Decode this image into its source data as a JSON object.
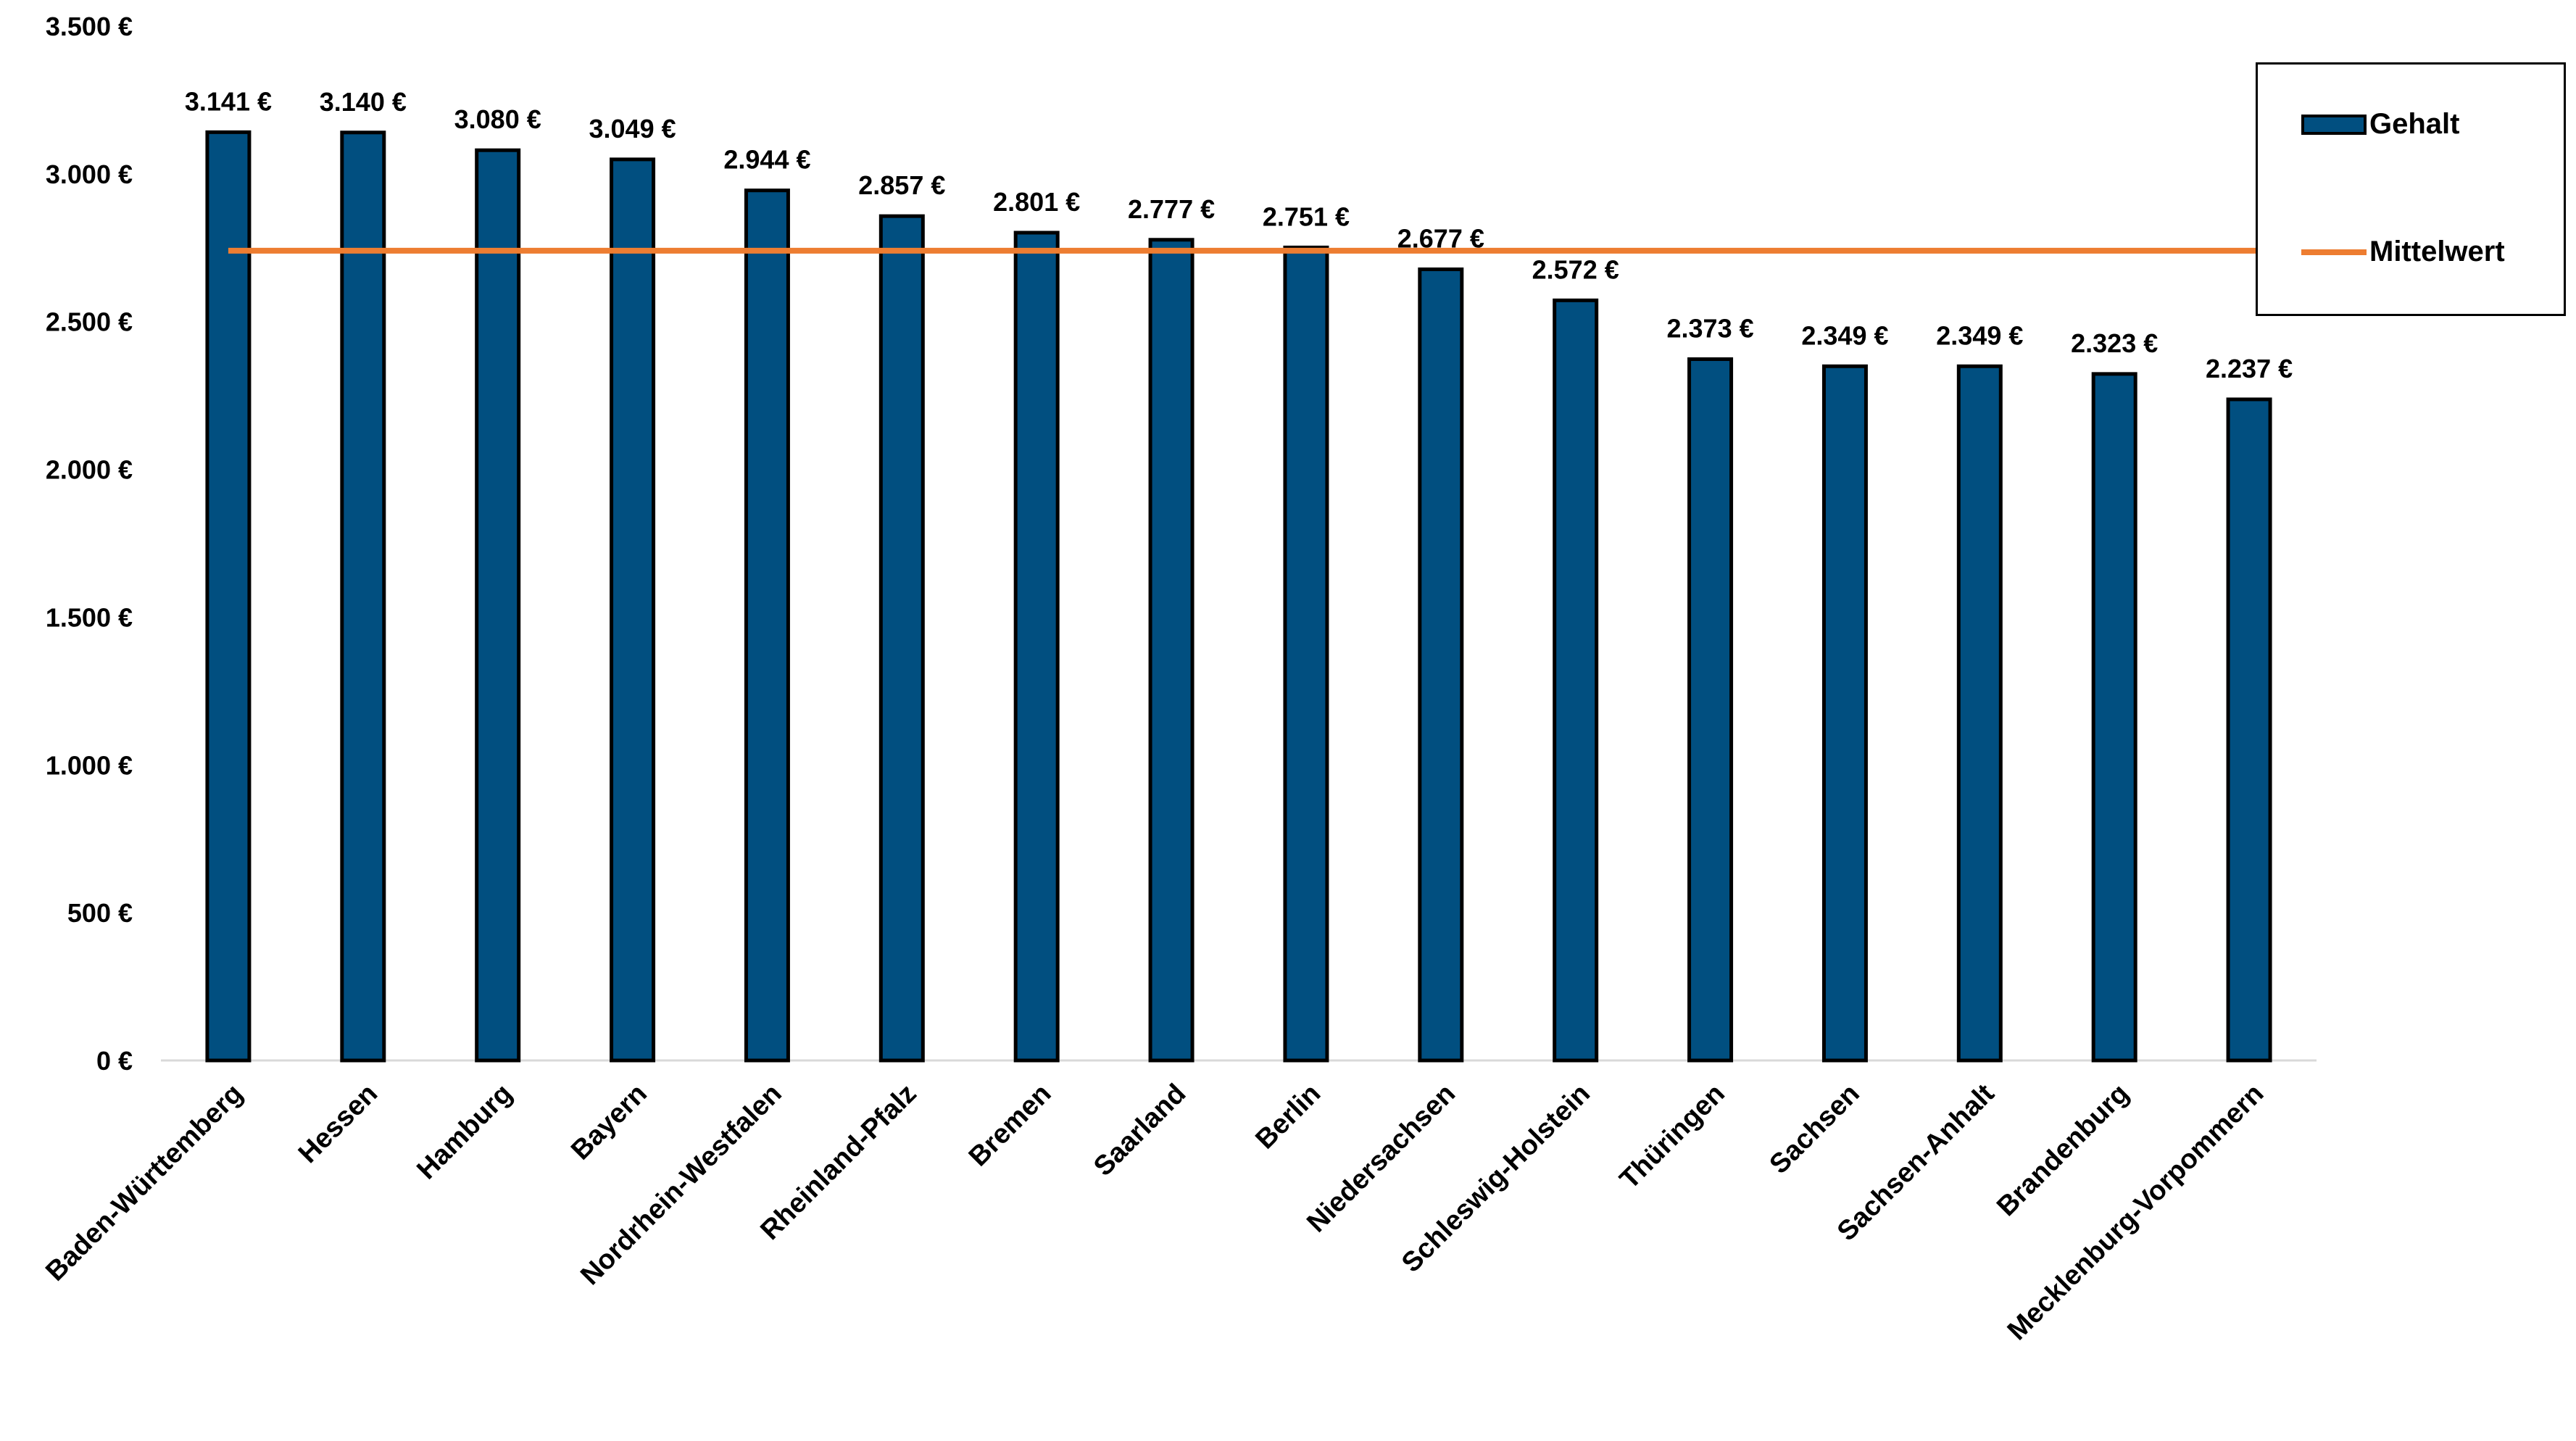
{
  "chart_data": {
    "type": "bar",
    "categories": [
      "Baden-Württemberg",
      "Hessen",
      "Hamburg",
      "Bayern",
      "Nordrhein-Westfalen",
      "Rheinland-Pfalz",
      "Bremen",
      "Saarland",
      "Berlin",
      "Niedersachsen",
      "Schleswig-Holstein",
      "Thüringen",
      "Sachsen",
      "Sachsen-Anhalt",
      "Brandenburg",
      "Mecklenburg-Vorpommern"
    ],
    "series": [
      {
        "name": "Gehalt",
        "values": [
          3141,
          3140,
          3080,
          3049,
          2944,
          2857,
          2801,
          2777,
          2751,
          2677,
          2572,
          2373,
          2349,
          2349,
          2323,
          2237
        ]
      }
    ],
    "data_labels": [
      "3.141 €",
      "3.140 €",
      "3.080 €",
      "3.049 €",
      "2.944 €",
      "2.857 €",
      "2.801 €",
      "2.777 €",
      "2.751 €",
      "2.677 €",
      "2.572 €",
      "2.373 €",
      "2.349 €",
      "2.349 €",
      "2.323 €",
      "2.237 €"
    ],
    "reference_line": {
      "name": "Mittelwert",
      "value": 2740
    },
    "y_ticks": [
      0,
      500,
      1000,
      1500,
      2000,
      2500,
      3000,
      3500
    ],
    "y_tick_labels": [
      "0 €",
      "500 €",
      "1.000 €",
      "1.500 €",
      "2.000 €",
      "2.500 €",
      "3.000 €",
      "3.500 €"
    ],
    "ylim": [
      0,
      3500
    ],
    "grid": false,
    "legend_position": "top-right",
    "title": "",
    "xlabel": "",
    "ylabel": "",
    "colors": {
      "bar": "#014f80",
      "bar_border": "#000000",
      "mean_line": "#ed7d31"
    }
  },
  "legend": {
    "bar_label": "Gehalt",
    "line_label": "Mittelwert"
  }
}
